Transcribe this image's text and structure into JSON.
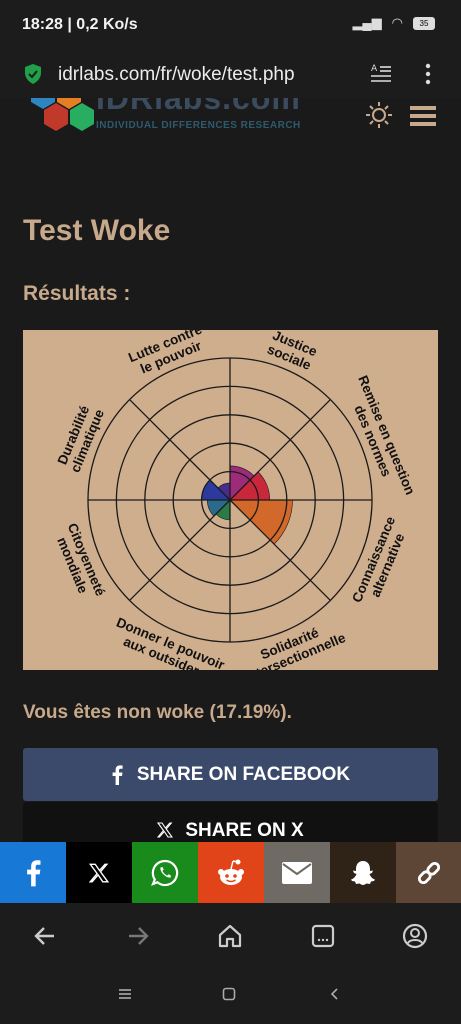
{
  "status_bar": {
    "time": "18:28 | 0,2 Ko/s",
    "battery": "35"
  },
  "browser": {
    "url": "idrlabs.com/fr/woke/test.php"
  },
  "site": {
    "logo_title": "IDRlabs.com",
    "logo_subtitle": "INDIVIDUAL DIFFERENCES RESEARCH"
  },
  "page": {
    "title": "Test Woke",
    "results_label": "Résultats :",
    "result_text": "Vous êtes non woke (17.19%)."
  },
  "chart_data": {
    "type": "radar-polar-area",
    "categories": [
      "Justice sociale",
      "Remise en question des normes",
      "Connaissance alternative",
      "Solidarité intersectionnelle",
      "Donner le pouvoir aux outsiders",
      "Citoyenneté mondiale",
      "Durabilité climatique",
      "Lutte contre le pouvoir"
    ],
    "label_lines": [
      [
        "Justice",
        "sociale"
      ],
      [
        "Remise en question",
        "des normes"
      ],
      [
        "Connaissance",
        "alternative"
      ],
      [
        "Solidarité",
        "intersectionnelle"
      ],
      [
        "Donner le pouvoir",
        "aux outsiders"
      ],
      [
        "Citoyenneté",
        "mondiale"
      ],
      [
        "Durabilité",
        "climatique"
      ],
      [
        "Lutte contre",
        "le pouvoir"
      ]
    ],
    "values": [
      24,
      28,
      44,
      0,
      14,
      16,
      20,
      12
    ],
    "colors": [
      "#9c2c7a",
      "#c8283a",
      "#d2692a",
      "#9a7a2a",
      "#2a7a4a",
      "#2a6a8a",
      "#2b3a9c",
      "#4a2c8a"
    ],
    "rings": 5,
    "max": 100
  },
  "share": {
    "facebook_label": "SHARE ON FACEBOOK",
    "x_label": "SHARE ON X",
    "bar_colors": [
      "#1778d6",
      "#000000",
      "#198b1d",
      "#e2441a",
      "#6f6a63",
      "#2e2316",
      "#5d4636"
    ]
  }
}
